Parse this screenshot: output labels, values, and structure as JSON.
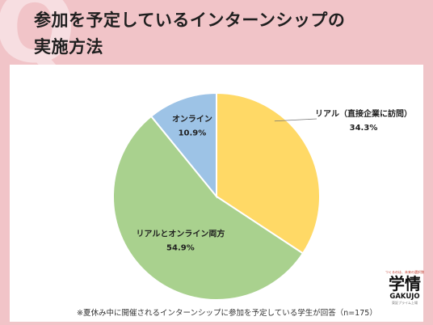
{
  "title_line1": "参加を予定しているインターンシップの",
  "title_line2": "実施方法",
  "chart_data": {
    "type": "pie",
    "start_angle_deg": 0,
    "direction": "clockwise",
    "slices": [
      {
        "label": "リアル（直接企業に訪問）",
        "value": 34.3,
        "value_label": "34.3%",
        "color": "#ffd966"
      },
      {
        "label": "リアルとオンライン両方",
        "value": 54.9,
        "value_label": "54.9%",
        "color": "#a9d18e"
      },
      {
        "label": "オンライン",
        "value": 10.9,
        "value_label": "10.9%",
        "color": "#9dc3e6"
      }
    ]
  },
  "footnote": "※夏休み中に開催されるインターンシップに参加を予定している学生が回答（n=175）",
  "logo": {
    "tagline": "つくるのは、未来の選択肢",
    "name": "学情",
    "name_en": "GAKUJO",
    "sub": "東証プライム上場"
  }
}
